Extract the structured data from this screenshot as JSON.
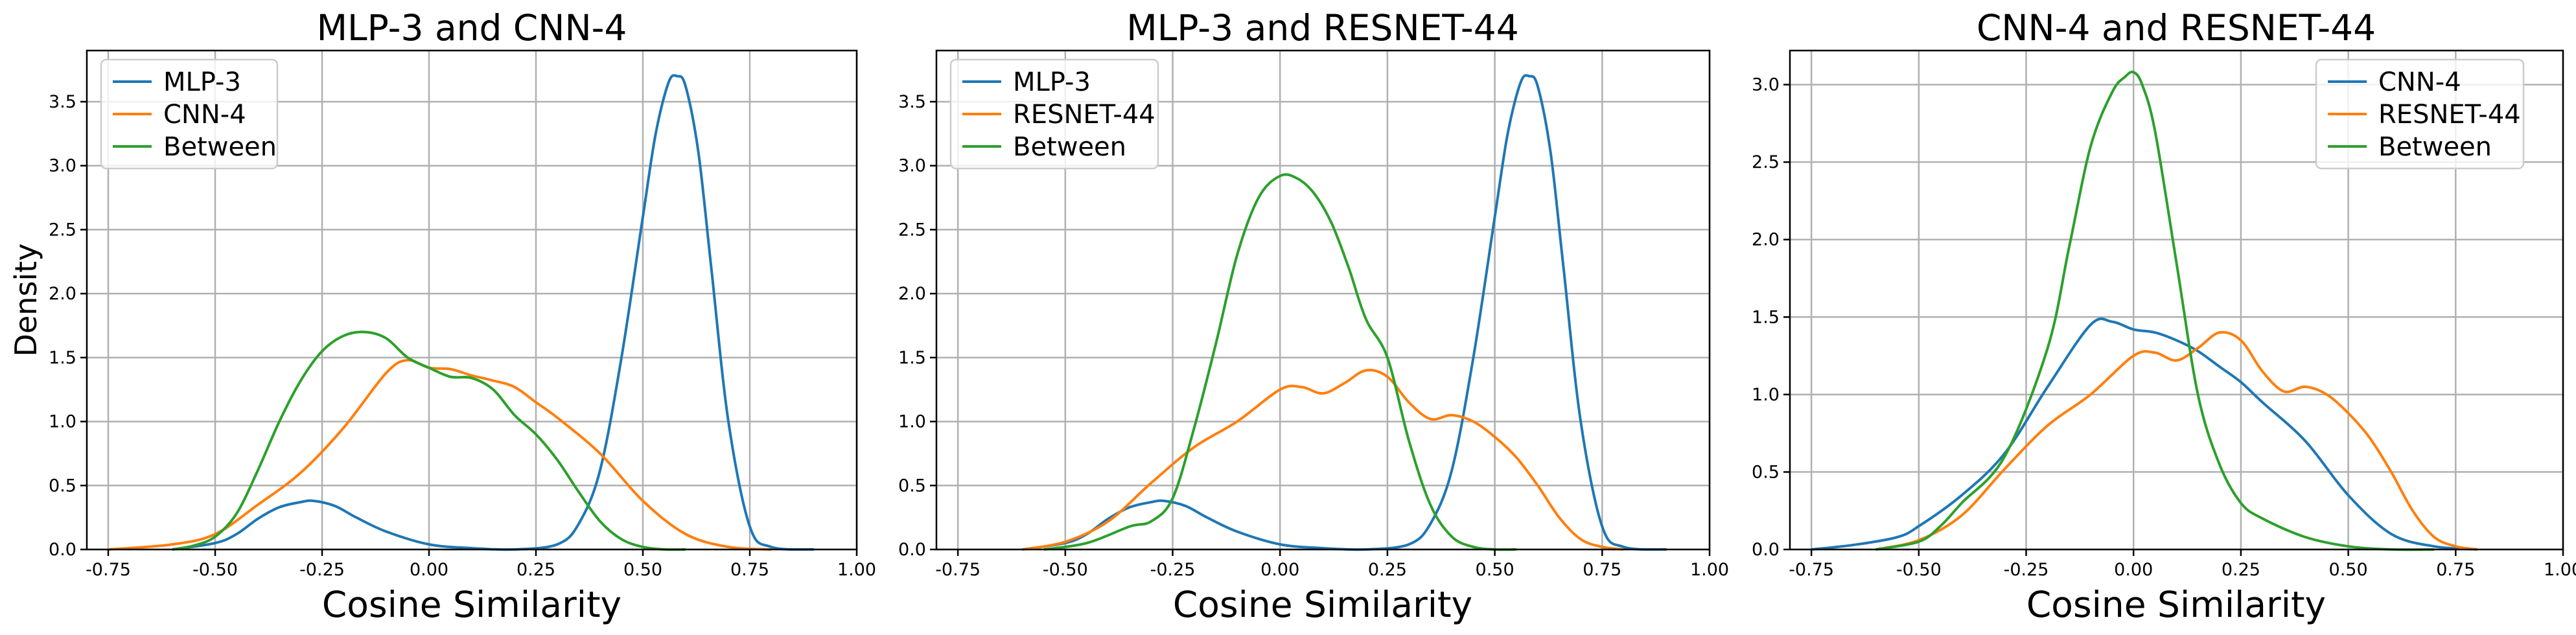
{
  "colors": {
    "blue": "#1f77b4",
    "orange": "#ff7f0e",
    "green": "#2ca02c"
  },
  "chart_data": [
    {
      "type": "line",
      "title": "MLP-3 and CNN-4",
      "xlabel": "Cosine Similarity",
      "ylabel": "Density",
      "xlim": [
        -0.8,
        1.0
      ],
      "ylim": [
        0,
        3.9
      ],
      "xticks": [
        "-0.75",
        "-0.50",
        "-0.25",
        "0.00",
        "0.25",
        "0.50",
        "0.75",
        "1.00"
      ],
      "xtick_values": [
        -0.75,
        -0.5,
        -0.25,
        0,
        0.25,
        0.5,
        0.75,
        1.0
      ],
      "yticks": [
        "0.0",
        "0.5",
        "1.0",
        "1.5",
        "2.0",
        "2.5",
        "3.0",
        "3.5"
      ],
      "ytick_values": [
        0,
        0.5,
        1.0,
        1.5,
        2.0,
        2.5,
        3.0,
        3.5
      ],
      "grid": true,
      "legend": "upper left",
      "series": [
        {
          "name": "MLP-3",
          "color": "#1f77b4",
          "x": [
            -0.6,
            -0.5,
            -0.45,
            -0.4,
            -0.35,
            -0.3,
            -0.27,
            -0.22,
            -0.17,
            -0.1,
            0.0,
            0.1,
            0.2,
            0.3,
            0.35,
            0.4,
            0.45,
            0.5,
            0.53,
            0.56,
            0.58,
            0.6,
            0.63,
            0.66,
            0.7,
            0.75,
            0.8,
            0.9
          ],
          "y": [
            0.0,
            0.05,
            0.12,
            0.24,
            0.33,
            0.37,
            0.38,
            0.34,
            0.25,
            0.14,
            0.04,
            0.01,
            0.0,
            0.04,
            0.2,
            0.62,
            1.5,
            2.6,
            3.25,
            3.65,
            3.7,
            3.62,
            3.1,
            2.2,
            1.0,
            0.18,
            0.02,
            0.0
          ]
        },
        {
          "name": "CNN-4",
          "color": "#ff7f0e",
          "x": [
            -0.75,
            -0.6,
            -0.5,
            -0.4,
            -0.3,
            -0.2,
            -0.1,
            -0.05,
            0.0,
            0.05,
            0.1,
            0.15,
            0.2,
            0.25,
            0.3,
            0.4,
            0.5,
            0.6,
            0.7,
            0.8
          ],
          "y": [
            0.0,
            0.04,
            0.12,
            0.35,
            0.6,
            0.95,
            1.38,
            1.48,
            1.42,
            1.41,
            1.36,
            1.32,
            1.27,
            1.15,
            1.03,
            0.75,
            0.38,
            0.12,
            0.02,
            0.0
          ]
        },
        {
          "name": "Between",
          "color": "#2ca02c",
          "x": [
            -0.6,
            -0.55,
            -0.5,
            -0.45,
            -0.4,
            -0.35,
            -0.3,
            -0.25,
            -0.2,
            -0.15,
            -0.1,
            -0.05,
            0.0,
            0.05,
            0.1,
            0.15,
            0.2,
            0.25,
            0.3,
            0.35,
            0.4,
            0.45,
            0.5,
            0.55,
            0.6
          ],
          "y": [
            0.0,
            0.03,
            0.1,
            0.28,
            0.62,
            1.0,
            1.32,
            1.55,
            1.67,
            1.7,
            1.65,
            1.5,
            1.42,
            1.35,
            1.34,
            1.25,
            1.05,
            0.9,
            0.7,
            0.45,
            0.22,
            0.08,
            0.02,
            0.0,
            0.0
          ]
        }
      ]
    },
    {
      "type": "line",
      "title": "MLP-3 and RESNET-44",
      "xlabel": "Cosine Similarity",
      "ylabel": "",
      "xlim": [
        -0.8,
        1.0
      ],
      "ylim": [
        0,
        3.9
      ],
      "xticks": [
        "-0.75",
        "-0.50",
        "-0.25",
        "0.00",
        "0.25",
        "0.50",
        "0.75",
        "1.00"
      ],
      "xtick_values": [
        -0.75,
        -0.5,
        -0.25,
        0,
        0.25,
        0.5,
        0.75,
        1.0
      ],
      "yticks": [
        "0.0",
        "0.5",
        "1.0",
        "1.5",
        "2.0",
        "2.5",
        "3.0",
        "3.5"
      ],
      "ytick_values": [
        0,
        0.5,
        1.0,
        1.5,
        2.0,
        2.5,
        3.0,
        3.5
      ],
      "grid": true,
      "legend": "upper left",
      "series": [
        {
          "name": "MLP-3",
          "color": "#1f77b4",
          "x": [
            -0.6,
            -0.5,
            -0.45,
            -0.4,
            -0.35,
            -0.3,
            -0.27,
            -0.22,
            -0.17,
            -0.1,
            0.0,
            0.1,
            0.2,
            0.3,
            0.35,
            0.4,
            0.45,
            0.5,
            0.53,
            0.56,
            0.58,
            0.6,
            0.63,
            0.66,
            0.7,
            0.75,
            0.8,
            0.9
          ],
          "y": [
            0.0,
            0.05,
            0.12,
            0.24,
            0.33,
            0.37,
            0.38,
            0.34,
            0.25,
            0.14,
            0.04,
            0.01,
            0.0,
            0.04,
            0.2,
            0.62,
            1.5,
            2.6,
            3.25,
            3.65,
            3.7,
            3.62,
            3.1,
            2.2,
            1.0,
            0.18,
            0.02,
            0.0
          ]
        },
        {
          "name": "RESNET-44",
          "color": "#ff7f0e",
          "x": [
            -0.6,
            -0.5,
            -0.4,
            -0.3,
            -0.2,
            -0.1,
            0.0,
            0.05,
            0.1,
            0.15,
            0.2,
            0.25,
            0.3,
            0.35,
            0.4,
            0.45,
            0.5,
            0.55,
            0.6,
            0.65,
            0.7,
            0.75,
            0.8
          ],
          "y": [
            0.0,
            0.06,
            0.22,
            0.52,
            0.8,
            1.0,
            1.25,
            1.27,
            1.22,
            1.3,
            1.4,
            1.35,
            1.15,
            1.02,
            1.05,
            1.0,
            0.88,
            0.72,
            0.5,
            0.25,
            0.08,
            0.02,
            0.0
          ]
        },
        {
          "name": "Between",
          "color": "#2ca02c",
          "x": [
            -0.55,
            -0.45,
            -0.35,
            -0.3,
            -0.25,
            -0.2,
            -0.15,
            -0.1,
            -0.05,
            0.0,
            0.04,
            0.08,
            0.12,
            0.16,
            0.2,
            0.25,
            0.3,
            0.35,
            0.4,
            0.45,
            0.5,
            0.55
          ],
          "y": [
            0.0,
            0.05,
            0.18,
            0.22,
            0.4,
            0.95,
            1.6,
            2.3,
            2.75,
            2.92,
            2.9,
            2.78,
            2.55,
            2.2,
            1.8,
            1.5,
            0.85,
            0.35,
            0.1,
            0.02,
            0.0,
            0.0
          ]
        }
      ]
    },
    {
      "type": "line",
      "title": "CNN-4 and RESNET-44",
      "xlabel": "Cosine Similarity",
      "ylabel": "",
      "xlim": [
        -0.8,
        1.0
      ],
      "ylim": [
        0,
        3.22
      ],
      "xticks": [
        "-0.75",
        "-0.50",
        "-0.25",
        "0.00",
        "0.25",
        "0.50",
        "0.75",
        "1.00"
      ],
      "xtick_values": [
        -0.75,
        -0.5,
        -0.25,
        0,
        0.25,
        0.5,
        0.75,
        1.0
      ],
      "yticks": [
        "0.0",
        "0.5",
        "1.0",
        "1.5",
        "2.0",
        "2.5",
        "3.0"
      ],
      "ytick_values": [
        0,
        0.5,
        1.0,
        1.5,
        2.0,
        2.5,
        3.0
      ],
      "grid": true,
      "legend": "upper right",
      "series": [
        {
          "name": "CNN-4",
          "color": "#1f77b4",
          "x": [
            -0.75,
            -0.65,
            -0.55,
            -0.5,
            -0.4,
            -0.3,
            -0.2,
            -0.1,
            -0.05,
            0.0,
            0.05,
            0.1,
            0.15,
            0.2,
            0.25,
            0.3,
            0.4,
            0.5,
            0.6,
            0.7,
            0.8
          ],
          "y": [
            0.0,
            0.03,
            0.08,
            0.15,
            0.35,
            0.62,
            1.05,
            1.45,
            1.47,
            1.42,
            1.4,
            1.35,
            1.28,
            1.18,
            1.08,
            0.95,
            0.7,
            0.35,
            0.1,
            0.02,
            0.0
          ]
        },
        {
          "name": "RESNET-44",
          "color": "#ff7f0e",
          "x": [
            -0.6,
            -0.5,
            -0.4,
            -0.3,
            -0.2,
            -0.1,
            0.0,
            0.05,
            0.1,
            0.15,
            0.2,
            0.25,
            0.3,
            0.35,
            0.4,
            0.45,
            0.5,
            0.55,
            0.6,
            0.65,
            0.7,
            0.75,
            0.8
          ],
          "y": [
            0.0,
            0.06,
            0.22,
            0.52,
            0.8,
            1.0,
            1.25,
            1.27,
            1.22,
            1.3,
            1.4,
            1.35,
            1.15,
            1.02,
            1.05,
            1.0,
            0.88,
            0.72,
            0.5,
            0.25,
            0.08,
            0.02,
            0.0
          ]
        },
        {
          "name": "Between",
          "color": "#2ca02c",
          "x": [
            -0.6,
            -0.5,
            -0.45,
            -0.4,
            -0.3,
            -0.2,
            -0.15,
            -0.1,
            -0.05,
            -0.02,
            0.0,
            0.02,
            0.05,
            0.1,
            0.15,
            0.2,
            0.25,
            0.3,
            0.4,
            0.5,
            0.6,
            0.7
          ],
          "y": [
            0.0,
            0.05,
            0.15,
            0.3,
            0.6,
            1.3,
            1.95,
            2.6,
            2.95,
            3.05,
            3.08,
            3.0,
            2.7,
            1.85,
            1.0,
            0.55,
            0.3,
            0.2,
            0.08,
            0.02,
            0.0,
            0.0
          ]
        }
      ]
    }
  ]
}
